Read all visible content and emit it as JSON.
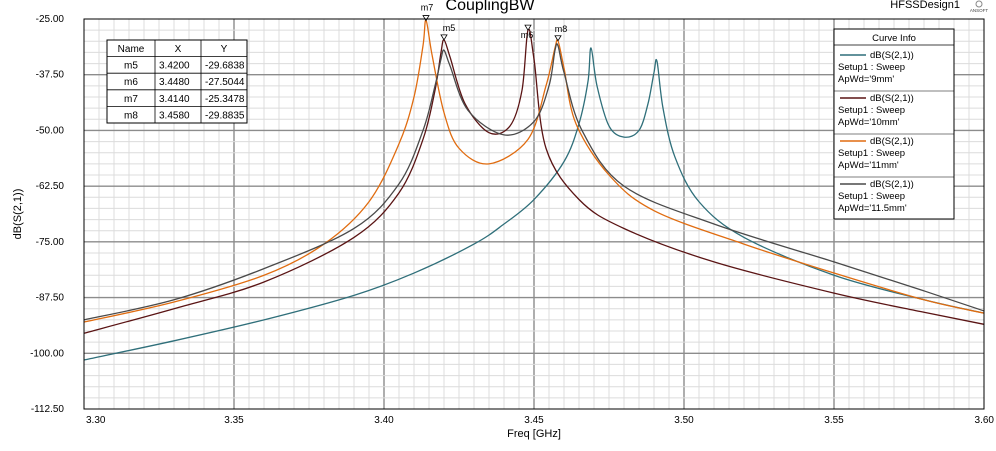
{
  "app": {
    "design_name": "HFSSDesign1",
    "logo_text": "ANSOFT"
  },
  "chart_data": {
    "type": "line",
    "title": "CouplingBW",
    "xlabel": "Freq [GHz]",
    "ylabel": "dB(S(2,1))",
    "xlim": [
      3.3,
      3.6
    ],
    "ylim": [
      -112.5,
      -25.0
    ],
    "x_ticks": [
      "3.30",
      "3.35",
      "3.40",
      "3.45",
      "3.50",
      "3.55",
      "3.60"
    ],
    "y_ticks": [
      "-25.00",
      "-37.50",
      "-50.00",
      "-62.50",
      "-75.00",
      "-87.50",
      "-100.00",
      "-112.50"
    ],
    "grid": true,
    "legend_title": "Curve Info",
    "legend_position": "top-right",
    "series": [
      {
        "name": "dB(S(2,1))",
        "setup": "Setup1 : Sweep",
        "param": "ApWd='9mm'",
        "color": "#2f6f7a",
        "x": [
          3.3,
          3.33,
          3.36,
          3.39,
          3.41,
          3.43,
          3.44,
          3.45,
          3.46,
          3.465,
          3.468,
          3.469,
          3.471,
          3.475,
          3.48,
          3.485,
          3.488,
          3.49,
          3.491,
          3.493,
          3.497,
          3.505,
          3.52,
          3.55,
          3.58,
          3.6
        ],
        "y": [
          -101.5,
          -97.2,
          -92.5,
          -87.0,
          -82.0,
          -75.5,
          -71.0,
          -65.5,
          -57.0,
          -48.5,
          -39.0,
          -31.5,
          -40.0,
          -49.0,
          -51.5,
          -50.0,
          -44.0,
          -37.0,
          -34.5,
          -45.0,
          -56.0,
          -66.0,
          -74.0,
          -82.5,
          -88.0,
          -91.0
        ]
      },
      {
        "name": "dB(S(2,1))",
        "setup": "Setup1 : Sweep",
        "param": "ApWd='10mm'",
        "color": "#5a1414",
        "x": [
          3.3,
          3.33,
          3.36,
          3.39,
          3.405,
          3.413,
          3.417,
          3.419,
          3.42,
          3.422,
          3.427,
          3.435,
          3.442,
          3.446,
          3.448,
          3.45,
          3.454,
          3.465,
          3.48,
          3.51,
          3.55,
          3.58,
          3.6
        ],
        "y": [
          -95.5,
          -90.0,
          -84.0,
          -74.0,
          -64.0,
          -52.0,
          -41.0,
          -32.5,
          -29.7,
          -33.5,
          -44.0,
          -50.5,
          -49.0,
          -41.0,
          -27.5,
          -34.0,
          -54.0,
          -65.5,
          -72.0,
          -79.5,
          -86.5,
          -90.8,
          -93.5
        ]
      },
      {
        "name": "dB(S(2,1))",
        "setup": "Setup1 : Sweep",
        "param": "ApWd='11mm'",
        "color": "#e06c10",
        "x": [
          3.3,
          3.33,
          3.36,
          3.38,
          3.395,
          3.405,
          3.41,
          3.413,
          3.414,
          3.416,
          3.42,
          3.425,
          3.435,
          3.448,
          3.454,
          3.457,
          3.458,
          3.46,
          3.464,
          3.475,
          3.49,
          3.52,
          3.55,
          3.58,
          3.6
        ],
        "y": [
          -93.0,
          -88.5,
          -82.5,
          -75.5,
          -66.0,
          -53.0,
          -42.5,
          -31.0,
          -25.3,
          -33.0,
          -46.0,
          -54.0,
          -57.5,
          -52.0,
          -40.0,
          -31.5,
          -29.9,
          -36.0,
          -48.5,
          -60.0,
          -68.0,
          -75.5,
          -82.0,
          -88.0,
          -91.0
        ]
      },
      {
        "name": "dB(S(2,1))",
        "setup": "Setup1 : Sweep",
        "param": "ApWd='11.5mm'",
        "color": "#4a4a4a",
        "x": [
          3.3,
          3.33,
          3.36,
          3.39,
          3.405,
          3.413,
          3.417,
          3.419,
          3.42,
          3.422,
          3.428,
          3.44,
          3.45,
          3.455,
          3.457,
          3.458,
          3.46,
          3.466,
          3.48,
          3.51,
          3.55,
          3.58,
          3.6
        ],
        "y": [
          -92.5,
          -88.0,
          -81.0,
          -72.0,
          -62.0,
          -50.0,
          -40.0,
          -34.0,
          -32.0,
          -35.5,
          -45.5,
          -51.0,
          -48.0,
          -40.0,
          -32.0,
          -31.0,
          -37.0,
          -50.0,
          -62.5,
          -71.0,
          -79.5,
          -86.0,
          -90.5
        ]
      }
    ],
    "markers": [
      {
        "name": "m5",
        "x": 3.42,
        "y": -29.6838,
        "x_label": "3.4200",
        "y_label": "-29.6838"
      },
      {
        "name": "m6",
        "x": 3.448,
        "y": -27.5044,
        "x_label": "3.4480",
        "y_label": "-27.5044"
      },
      {
        "name": "m7",
        "x": 3.414,
        "y": -25.3478,
        "x_label": "3.4140",
        "y_label": "-25.3478"
      },
      {
        "name": "m8",
        "x": 3.458,
        "y": -29.8835,
        "x_label": "3.4580",
        "y_label": "-29.8835"
      }
    ],
    "marker_table": {
      "headers": [
        "Name",
        "X",
        "Y"
      ]
    }
  }
}
